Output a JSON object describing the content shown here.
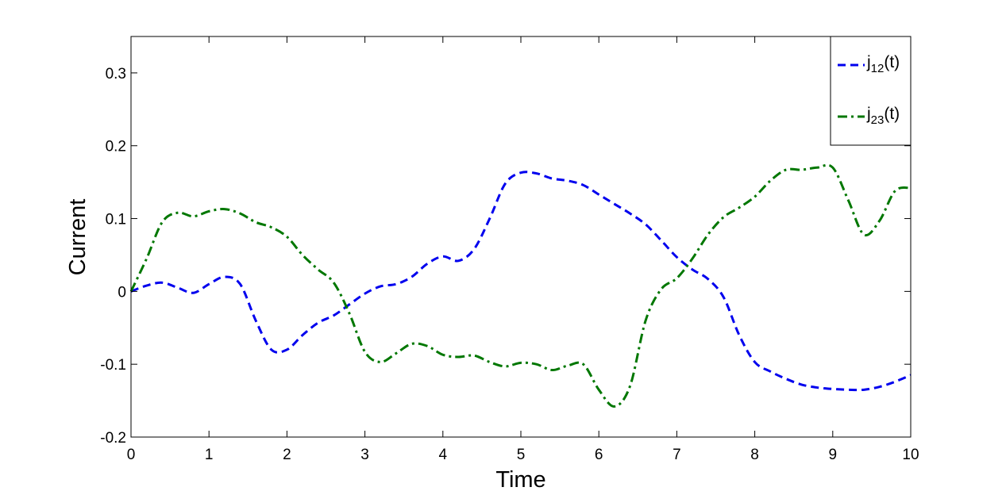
{
  "chart_data": {
    "type": "line",
    "title": "",
    "xlabel": "Time",
    "ylabel": "Current",
    "xlim": [
      0,
      10
    ],
    "ylim": [
      -0.2,
      0.35
    ],
    "xticks": [
      0,
      1,
      2,
      3,
      4,
      5,
      6,
      7,
      8,
      9,
      10
    ],
    "xtick_labels": [
      "0",
      "1",
      "2",
      "3",
      "4",
      "5",
      "6",
      "7",
      "8",
      "9",
      "10"
    ],
    "yticks": [
      -0.2,
      -0.1,
      0,
      0.1,
      0.2,
      0.3
    ],
    "ytick_labels": [
      "-0.2",
      "-0.1",
      "0",
      "0.1",
      "0.2",
      "0.3"
    ],
    "grid": false,
    "legend_position": "top-right",
    "series": [
      {
        "name": "j12(t)",
        "legend_main": "j",
        "legend_sub": "12",
        "legend_suffix": "(t)",
        "color": "#0000ee",
        "line_style": "dashed",
        "x": [
          0,
          0.2,
          0.4,
          0.6,
          0.8,
          1.0,
          1.2,
          1.4,
          1.6,
          1.8,
          2.0,
          2.2,
          2.4,
          2.6,
          2.8,
          3.0,
          3.2,
          3.4,
          3.6,
          3.8,
          4.0,
          4.2,
          4.4,
          4.6,
          4.8,
          5.0,
          5.2,
          5.4,
          5.6,
          5.8,
          6.0,
          6.2,
          6.4,
          6.6,
          6.8,
          7.0,
          7.2,
          7.4,
          7.6,
          7.8,
          8.0,
          8.2,
          8.4,
          8.6,
          8.8,
          9.0,
          9.2,
          9.4,
          9.6,
          9.8,
          10.0
        ],
        "y": [
          0.0,
          0.008,
          0.012,
          0.005,
          -0.002,
          0.01,
          0.02,
          0.01,
          -0.04,
          -0.08,
          -0.08,
          -0.06,
          -0.043,
          -0.033,
          -0.018,
          -0.003,
          0.007,
          0.01,
          0.02,
          0.038,
          0.048,
          0.042,
          0.058,
          0.1,
          0.148,
          0.163,
          0.162,
          0.155,
          0.152,
          0.146,
          0.133,
          0.12,
          0.107,
          0.092,
          0.07,
          0.047,
          0.03,
          0.017,
          -0.008,
          -0.06,
          -0.097,
          -0.11,
          -0.12,
          -0.128,
          -0.132,
          -0.134,
          -0.135,
          -0.135,
          -0.131,
          -0.124,
          -0.115
        ]
      },
      {
        "name": "j23(t)",
        "legend_main": "j",
        "legend_sub": "23",
        "legend_suffix": "(t)",
        "color": "#007700",
        "line_style": "dashdot",
        "x": [
          0,
          0.2,
          0.4,
          0.6,
          0.8,
          1.0,
          1.2,
          1.4,
          1.6,
          1.8,
          2.0,
          2.2,
          2.4,
          2.6,
          2.8,
          3.0,
          3.2,
          3.4,
          3.6,
          3.8,
          4.0,
          4.2,
          4.4,
          4.6,
          4.8,
          5.0,
          5.2,
          5.4,
          5.6,
          5.8,
          6.0,
          6.2,
          6.4,
          6.6,
          6.8,
          7.0,
          7.2,
          7.4,
          7.6,
          7.8,
          8.0,
          8.2,
          8.4,
          8.6,
          8.8,
          9.0,
          9.2,
          9.4,
          9.6,
          9.8,
          10.0
        ],
        "y": [
          0.0,
          0.045,
          0.095,
          0.108,
          0.103,
          0.11,
          0.113,
          0.107,
          0.095,
          0.088,
          0.075,
          0.05,
          0.03,
          0.012,
          -0.03,
          -0.083,
          -0.097,
          -0.085,
          -0.072,
          -0.075,
          -0.087,
          -0.09,
          -0.088,
          -0.097,
          -0.103,
          -0.098,
          -0.1,
          -0.108,
          -0.102,
          -0.1,
          -0.135,
          -0.158,
          -0.13,
          -0.04,
          0.003,
          0.018,
          0.045,
          0.078,
          0.102,
          0.115,
          0.13,
          0.152,
          0.167,
          0.167,
          0.17,
          0.17,
          0.125,
          0.078,
          0.097,
          0.138,
          0.142
        ]
      }
    ]
  }
}
